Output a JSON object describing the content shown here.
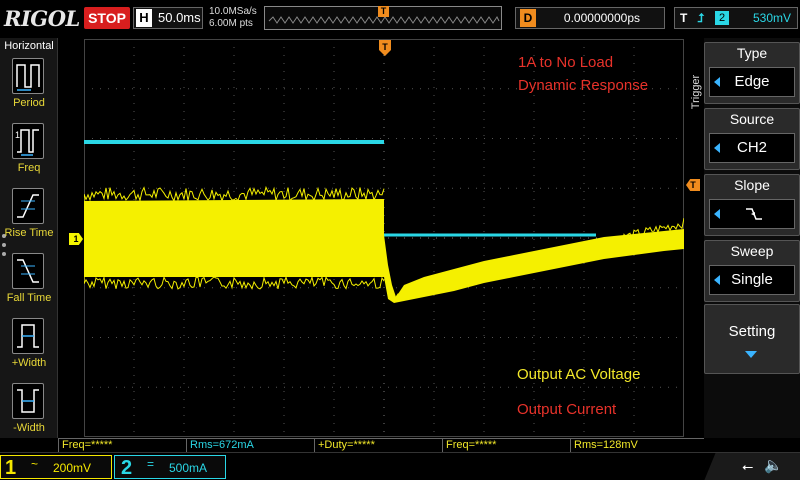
{
  "header": {
    "brand": "RIGOL",
    "run_state": "STOP",
    "horizontal_label": "H",
    "timebase": "50.0ms",
    "sample_rate": "10.0MSa/s",
    "memory_depth": "6.00M pts",
    "trigger_pos_marker": "T",
    "delay_label": "D",
    "delay_value": "0.00000000ps",
    "trigger_label": "T",
    "trigger_channel": "2",
    "trigger_level": "530mV"
  },
  "left_menu": {
    "title": "Horizontal",
    "items": [
      {
        "label": "Period"
      },
      {
        "label": "Freq"
      },
      {
        "label": "Rise Time"
      },
      {
        "label": "Fall Time"
      },
      {
        "label": "+Width"
      },
      {
        "label": "-Width"
      }
    ]
  },
  "waveform": {
    "trigger_marker": "T",
    "ch1_marker": "1",
    "trigger_level_marker": "T",
    "annotations": {
      "title_line1": "1A to No Load",
      "title_line2": "Dynamic Response",
      "voltage_label": "Output AC Voltage",
      "current_label": "Output Current"
    }
  },
  "right_menu": {
    "tab_label": "Trigger",
    "items": [
      {
        "header": "Type",
        "value": "Edge"
      },
      {
        "header": "Source",
        "value": "CH2"
      },
      {
        "header": "Slope",
        "value": ""
      },
      {
        "header": "Sweep",
        "value": "Single"
      }
    ],
    "setting_label": "Setting"
  },
  "measurements": [
    {
      "text": "Freq=*****",
      "channel": "ch1"
    },
    {
      "text": "Rms=672mA",
      "channel": "ch2"
    },
    {
      "text": "+Duty=*****",
      "channel": "ch1"
    },
    {
      "text": "Freq=*****",
      "channel": "ch1"
    },
    {
      "text": "Rms=128mV",
      "channel": "ch1"
    }
  ],
  "channels": {
    "ch1": {
      "number": "1",
      "coupling": "~",
      "scale": "200mV",
      "color": "#f5e800"
    },
    "ch2": {
      "number": "2",
      "coupling": "=",
      "scale": "500mA",
      "color": "#2ad7e6"
    }
  },
  "status_icons": {
    "usb": "usb-icon",
    "speaker": "speaker-muted-icon"
  }
}
